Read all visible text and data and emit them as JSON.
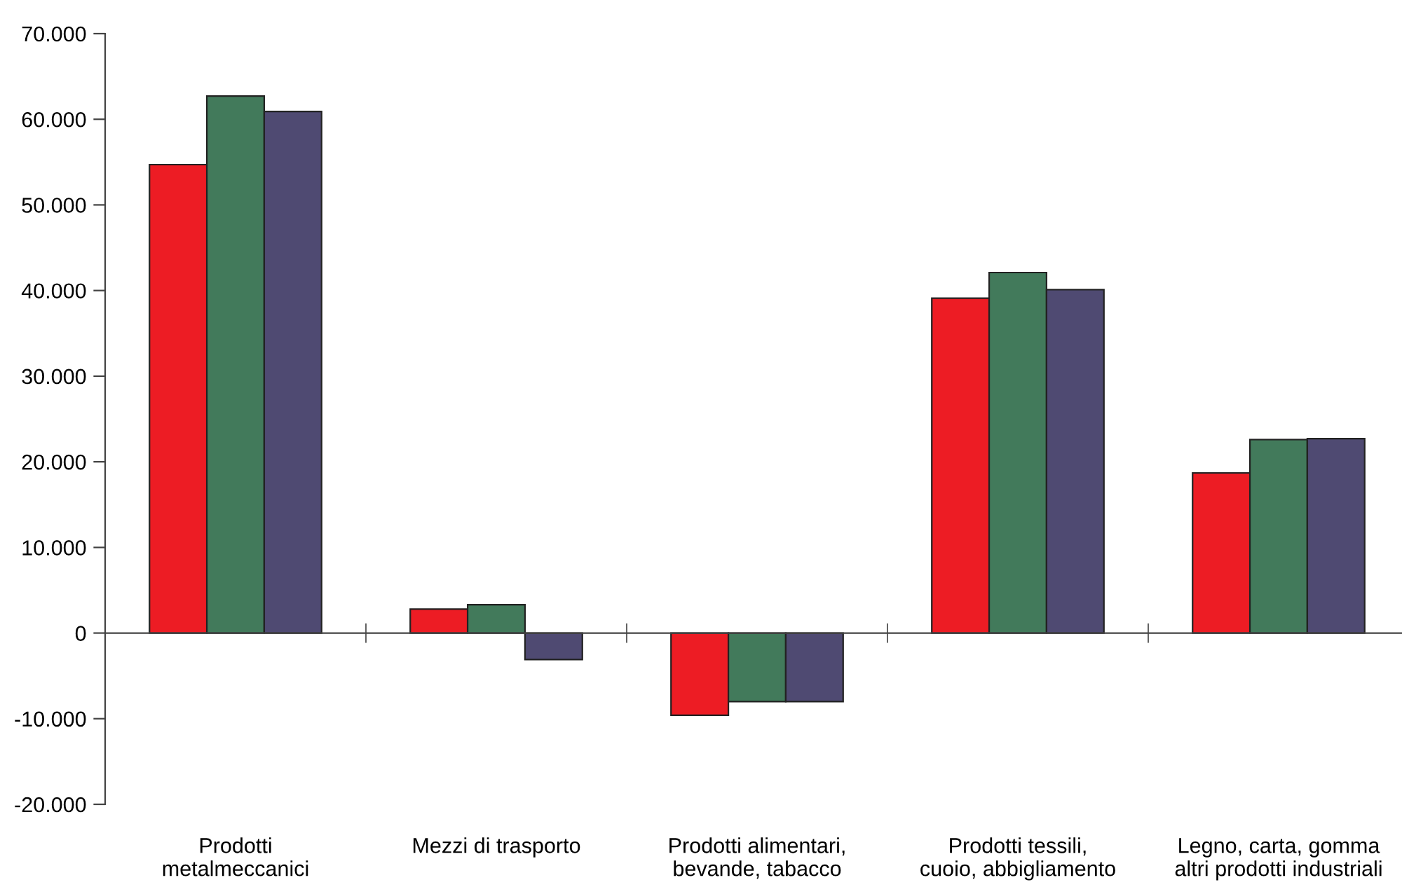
{
  "chart_data": {
    "type": "bar",
    "categories": [
      "Prodotti\nmetalmeccanici",
      "Mezzi di trasporto",
      "Prodotti alimentari,\nbevande, tabacco",
      "Prodotti tessili,\ncuoio, abbigliamento",
      "Legno, carta, gomma\naltri prodotti industriali"
    ],
    "series": [
      {
        "color": "#ed1c24",
        "values": [
          54700,
          2800,
          -9600,
          39100,
          18700
        ]
      },
      {
        "color": "#427a5b",
        "values": [
          62700,
          3300,
          -8000,
          42100,
          22600
        ]
      },
      {
        "color": "#4f4a72",
        "values": [
          60900,
          -3100,
          -8000,
          40100,
          22700
        ]
      }
    ],
    "ylim": [
      -20000,
      70000
    ],
    "yticks": [
      {
        "value": -20000,
        "label": "-20.000"
      },
      {
        "value": -10000,
        "label": "-10.000"
      },
      {
        "value": 0,
        "label": "0"
      },
      {
        "value": 10000,
        "label": "10.000"
      },
      {
        "value": 20000,
        "label": "20.000"
      },
      {
        "value": 30000,
        "label": "30.000"
      },
      {
        "value": 40000,
        "label": "40.000"
      },
      {
        "value": 50000,
        "label": "50.000"
      },
      {
        "value": 60000,
        "label": "60.000"
      },
      {
        "value": 70000,
        "label": "70.000"
      }
    ],
    "legend": false
  }
}
